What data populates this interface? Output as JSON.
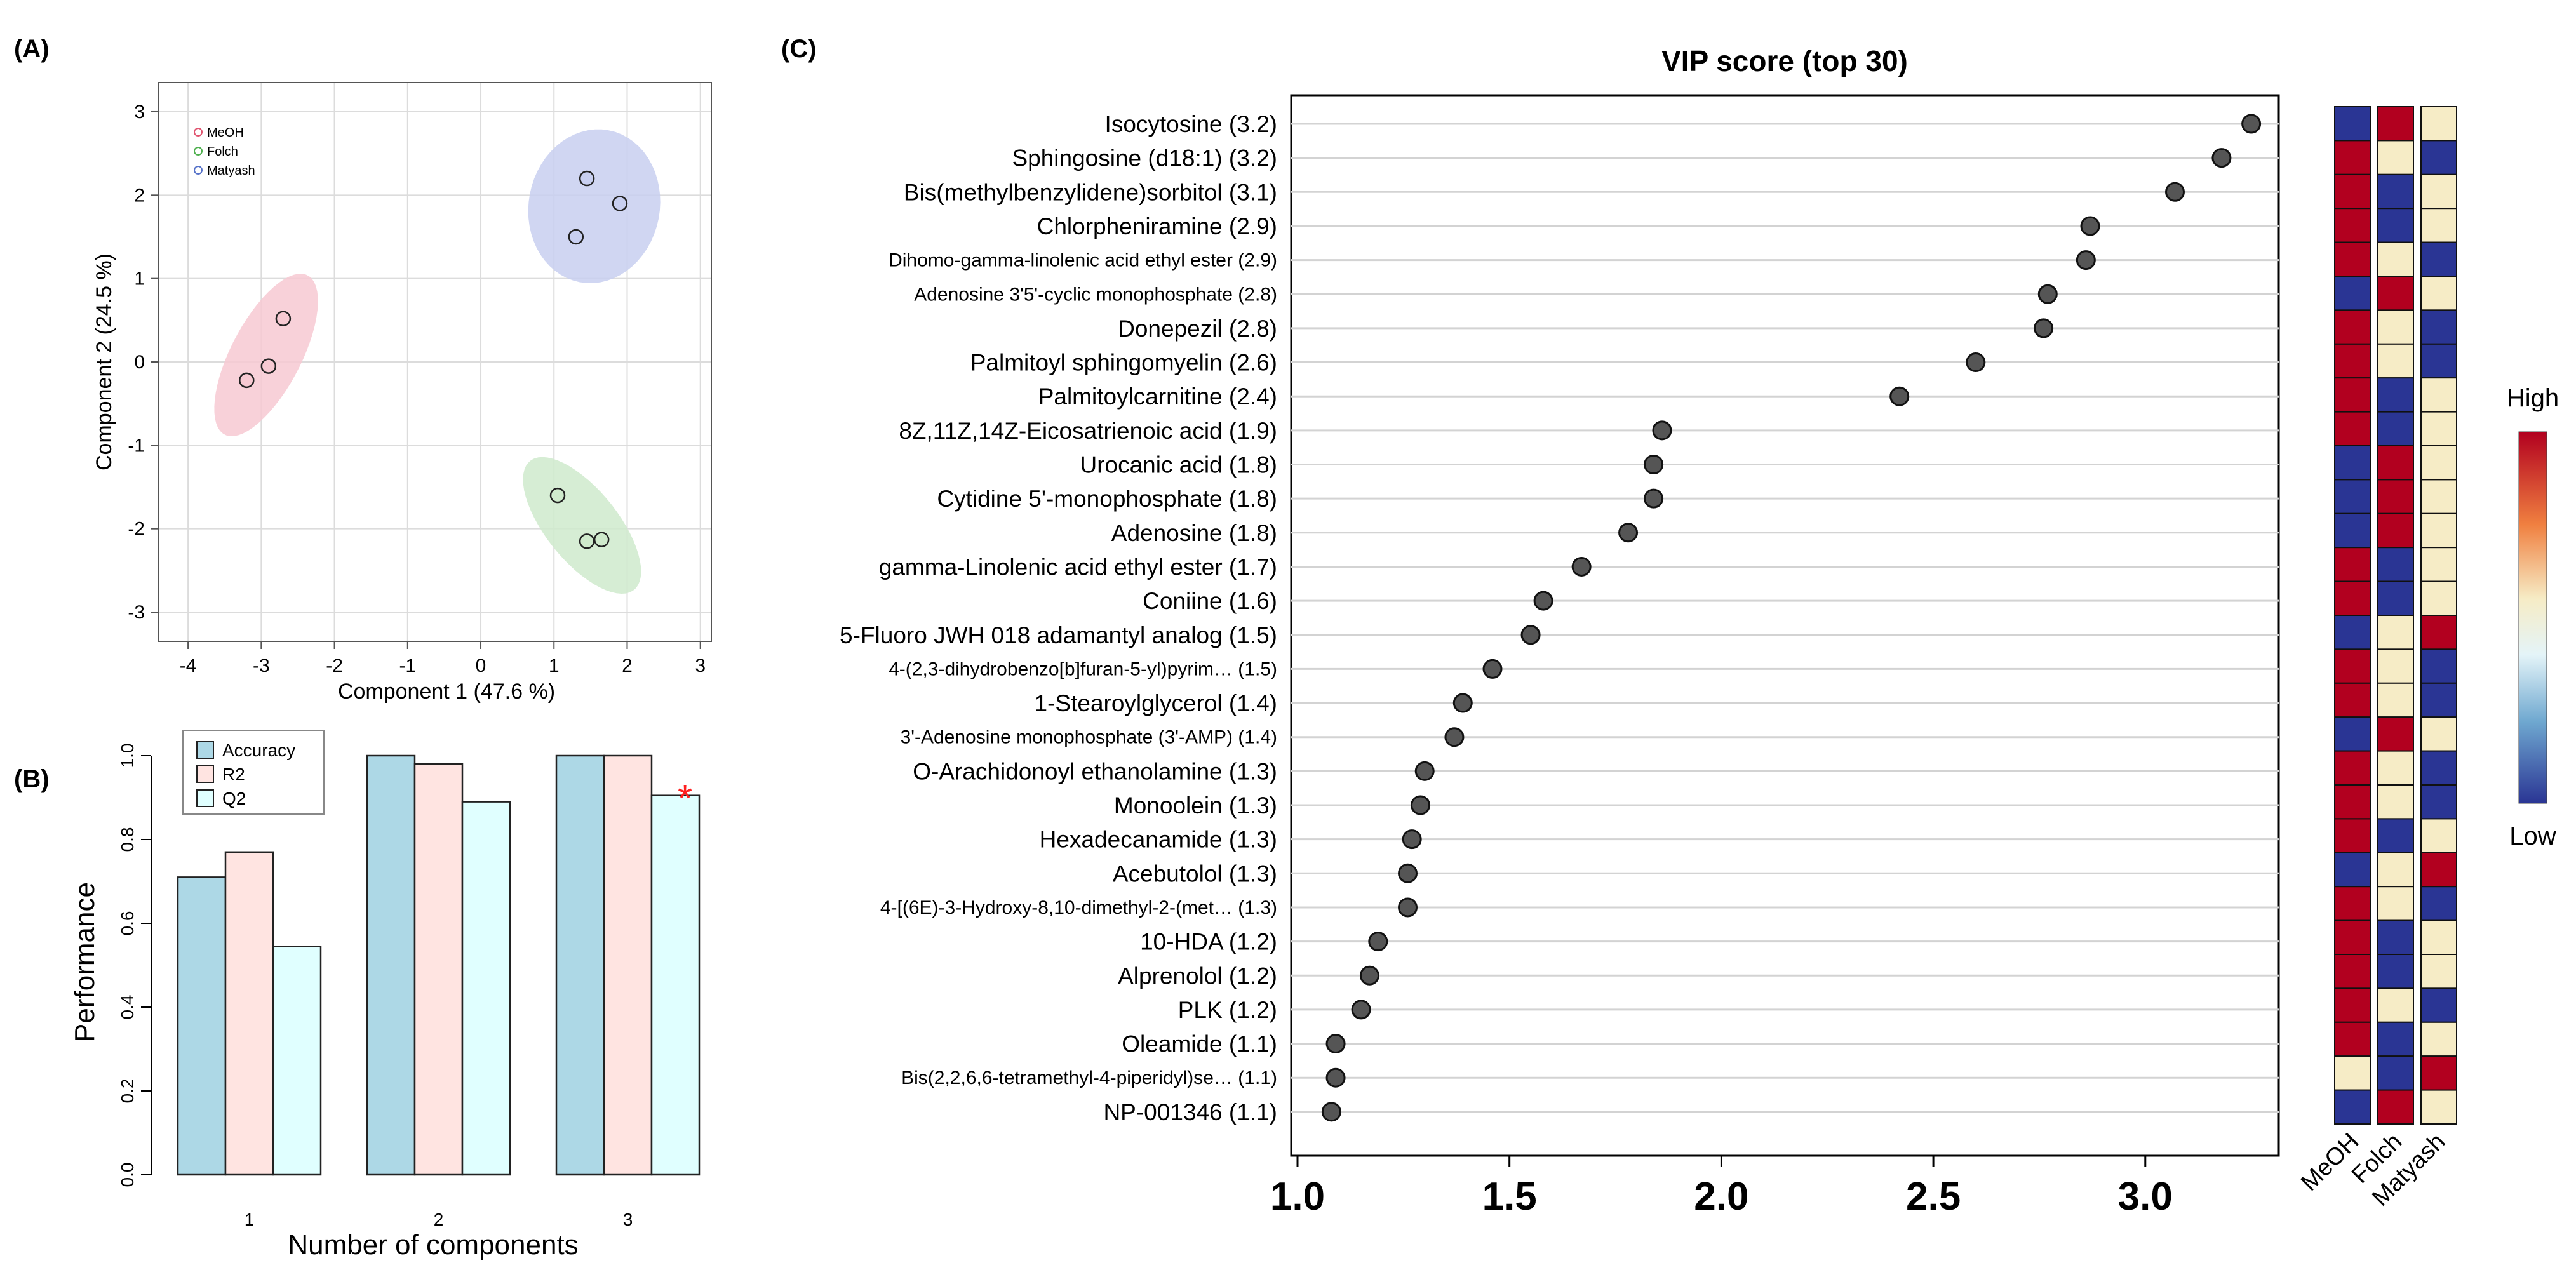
{
  "colors": {
    "meoh": "#e05570",
    "meoh_fill": "#f7c9d2",
    "folch": "#4fb04f",
    "folch_fill": "#cfeacc",
    "matyash": "#5672c9",
    "matyash_fill": "#c8cff0",
    "bar_accuracy": "#add8e6",
    "bar_r2": "#ffe4e1",
    "bar_q2": "#e0ffff",
    "star": "#ff2020",
    "dot": "#555555",
    "heat_high": "#b2001f",
    "heat_mid": "#f6ecc6",
    "heat_low": "#2a3594"
  },
  "chart_data": [
    {
      "panel": "(A)",
      "type": "scatter",
      "title": "",
      "xlabel": "Component 1 (47.6 %)",
      "ylabel": "Component 2 (24.5 %)",
      "xlim": [
        -4.4,
        3.15
      ],
      "ylim": [
        -3.35,
        3.35
      ],
      "xticks": [
        "-4",
        "-3",
        "-2",
        "-1",
        "0",
        "1",
        "2",
        "3"
      ],
      "yticks": [
        "-3",
        "-2",
        "-1",
        "0",
        "1",
        "2",
        "3"
      ],
      "grid": true,
      "legend": "top-left",
      "series": [
        {
          "name": "MeOH",
          "points": [
            [
              -3.2,
              -0.22
            ],
            [
              -2.9,
              -0.05
            ],
            [
              -2.7,
              0.52
            ]
          ]
        },
        {
          "name": "Folch",
          "points": [
            [
              1.05,
              -1.6
            ],
            [
              1.45,
              -2.15
            ],
            [
              1.65,
              -2.13
            ]
          ]
        },
        {
          "name": "Matyash",
          "points": [
            [
              1.45,
              2.2
            ],
            [
              1.3,
              1.5
            ],
            [
              1.9,
              1.9
            ]
          ]
        }
      ]
    },
    {
      "panel": "(B)",
      "type": "bar",
      "title": "",
      "xlabel": "Number of components",
      "ylabel": "Performance",
      "categories": [
        "1",
        "2",
        "3"
      ],
      "ylim": [
        0,
        1.0
      ],
      "yticks": [
        "0.0",
        "0.2",
        "0.4",
        "0.6",
        "0.8",
        "1.0"
      ],
      "legend": "top-left",
      "marker": "*",
      "series": [
        {
          "name": "Accuracy",
          "values": [
            0.71,
            1.0,
            1.0
          ]
        },
        {
          "name": "R2",
          "values": [
            0.77,
            0.98,
            1.0
          ]
        },
        {
          "name": "Q2",
          "values": [
            0.545,
            0.89,
            0.905
          ]
        }
      ]
    },
    {
      "panel": "(C)",
      "type": "scatter",
      "title": "VIP score (top 30)",
      "xlim": [
        1.0,
        3.3
      ],
      "xticks": [
        "1.0",
        "1.5",
        "2.0",
        "2.5",
        "3.0"
      ],
      "heatmap_columns": [
        "MeOH",
        "Folch",
        "Matyash"
      ],
      "heatmap_legend": {
        "high": "High",
        "low": "Low"
      },
      "items": [
        {
          "label": "Isocytosine (3.2)",
          "vip": 3.25,
          "heat": [
            "L",
            "H",
            "M"
          ],
          "large": true
        },
        {
          "label": "Sphingosine (d18:1) (3.2)",
          "vip": 3.18,
          "heat": [
            "H",
            "M",
            "L"
          ],
          "large": true
        },
        {
          "label": "Bis(methylbenzylidene)sorbitol (3.1)",
          "vip": 3.07,
          "heat": [
            "H",
            "L",
            "M"
          ],
          "large": true
        },
        {
          "label": "Chlorpheniramine (2.9)",
          "vip": 2.87,
          "heat": [
            "H",
            "L",
            "M"
          ],
          "large": true
        },
        {
          "label": "Dihomo-gamma-linolenic acid ethyl ester (2.9)",
          "vip": 2.86,
          "heat": [
            "H",
            "M",
            "L"
          ],
          "large": false
        },
        {
          "label": "Adenosine 3'5'-cyclic monophosphate (2.8)",
          "vip": 2.77,
          "heat": [
            "L",
            "H",
            "M"
          ],
          "large": false
        },
        {
          "label": "Donepezil (2.8)",
          "vip": 2.76,
          "heat": [
            "H",
            "M",
            "L"
          ],
          "large": true
        },
        {
          "label": "Palmitoyl sphingomyelin (2.6)",
          "vip": 2.6,
          "heat": [
            "H",
            "M",
            "L"
          ],
          "large": true
        },
        {
          "label": "Palmitoylcarnitine (2.4)",
          "vip": 2.42,
          "heat": [
            "H",
            "L",
            "M"
          ],
          "large": true
        },
        {
          "label": "8Z,11Z,14Z-Eicosatrienoic acid (1.9)",
          "vip": 1.86,
          "heat": [
            "H",
            "L",
            "M"
          ],
          "large": true
        },
        {
          "label": "Urocanic acid (1.8)",
          "vip": 1.84,
          "heat": [
            "L",
            "H",
            "M"
          ],
          "large": true
        },
        {
          "label": "Cytidine 5'-monophosphate (1.8)",
          "vip": 1.84,
          "heat": [
            "L",
            "H",
            "M"
          ],
          "large": true
        },
        {
          "label": "Adenosine (1.8)",
          "vip": 1.78,
          "heat": [
            "L",
            "H",
            "M"
          ],
          "large": true
        },
        {
          "label": "gamma-Linolenic acid ethyl ester (1.7)",
          "vip": 1.67,
          "heat": [
            "H",
            "L",
            "M"
          ],
          "large": true
        },
        {
          "label": "Coniine (1.6)",
          "vip": 1.58,
          "heat": [
            "H",
            "L",
            "M"
          ],
          "large": true
        },
        {
          "label": "5-Fluoro JWH 018 adamantyl analog (1.5)",
          "vip": 1.55,
          "heat": [
            "L",
            "M",
            "H"
          ],
          "large": true
        },
        {
          "label": "4-(2,3-dihydrobenzo[b]furan-5-yl)pyrim… (1.5)",
          "vip": 1.46,
          "heat": [
            "H",
            "M",
            "L"
          ],
          "large": false
        },
        {
          "label": "1-Stearoylglycerol (1.4)",
          "vip": 1.39,
          "heat": [
            "H",
            "M",
            "L"
          ],
          "large": true
        },
        {
          "label": "3'-Adenosine monophosphate (3'-AMP) (1.4)",
          "vip": 1.37,
          "heat": [
            "L",
            "H",
            "M"
          ],
          "large": false
        },
        {
          "label": "O-Arachidonoyl ethanolamine (1.3)",
          "vip": 1.3,
          "heat": [
            "H",
            "M",
            "L"
          ],
          "large": true
        },
        {
          "label": "Monoolein (1.3)",
          "vip": 1.29,
          "heat": [
            "H",
            "M",
            "L"
          ],
          "large": true
        },
        {
          "label": "Hexadecanamide (1.3)",
          "vip": 1.27,
          "heat": [
            "H",
            "L",
            "M"
          ],
          "large": true
        },
        {
          "label": "Acebutolol (1.3)",
          "vip": 1.26,
          "heat": [
            "L",
            "M",
            "H"
          ],
          "large": true
        },
        {
          "label": "4-[(6E)-3-Hydroxy-8,10-dimethyl-2-(met… (1.3)",
          "vip": 1.26,
          "heat": [
            "H",
            "M",
            "L"
          ],
          "large": false
        },
        {
          "label": "10-HDA (1.2)",
          "vip": 1.19,
          "heat": [
            "H",
            "L",
            "M"
          ],
          "large": true
        },
        {
          "label": "Alprenolol (1.2)",
          "vip": 1.17,
          "heat": [
            "H",
            "L",
            "M"
          ],
          "large": true
        },
        {
          "label": "PLK (1.2)",
          "vip": 1.15,
          "heat": [
            "H",
            "M",
            "L"
          ],
          "large": true
        },
        {
          "label": "Oleamide (1.1)",
          "vip": 1.09,
          "heat": [
            "H",
            "L",
            "M"
          ],
          "large": true
        },
        {
          "label": "Bis(2,2,6,6-tetramethyl-4-piperidyl)se… (1.1)",
          "vip": 1.09,
          "heat": [
            "M",
            "L",
            "H"
          ],
          "large": false
        },
        {
          "label": "NP-001346 (1.1)",
          "vip": 1.08,
          "heat": [
            "L",
            "H",
            "M"
          ],
          "large": true
        }
      ]
    }
  ]
}
